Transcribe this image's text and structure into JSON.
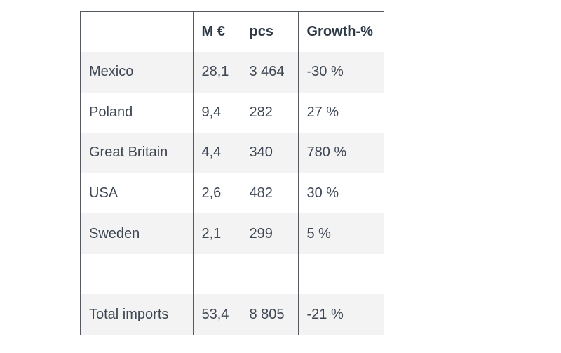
{
  "table": {
    "headers": [
      "",
      "M €",
      "pcs",
      "Growth-%"
    ],
    "rows": [
      [
        "Mexico",
        "28,1",
        "3 464",
        "-30 %"
      ],
      [
        "Poland",
        "9,4",
        "282",
        "27 %"
      ],
      [
        "Great Britain",
        "4,4",
        "340",
        "780 %"
      ],
      [
        "USA",
        "2,6",
        "482",
        "30 %"
      ],
      [
        "Sweden",
        "2,1",
        "299",
        "5 %"
      ],
      [
        "",
        "",
        "",
        ""
      ],
      [
        "Total imports",
        "53,4",
        "8 805",
        "-21 %"
      ]
    ]
  }
}
